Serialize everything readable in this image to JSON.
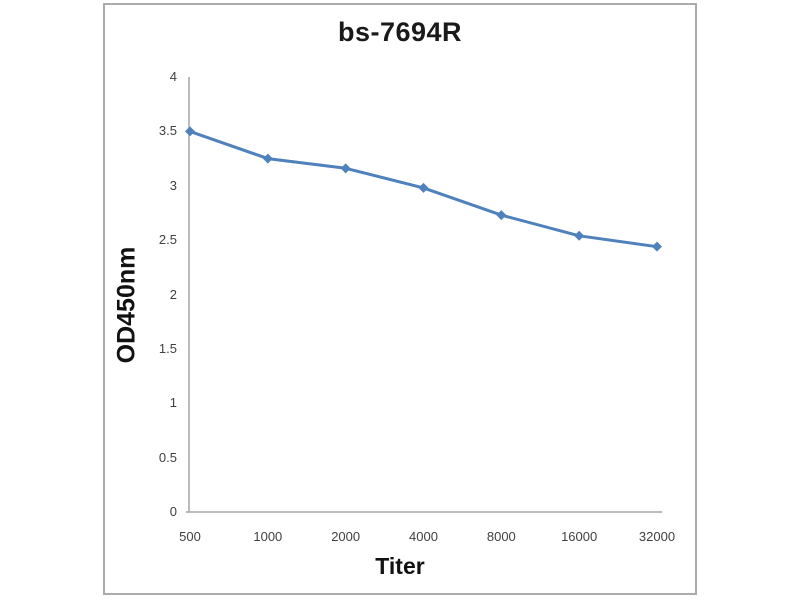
{
  "chart_data": {
    "type": "line",
    "title": "bs-7694R",
    "xlabel": "Titer",
    "ylabel": "OD450nm",
    "categories": [
      "500",
      "1000",
      "2000",
      "4000",
      "8000",
      "16000",
      "32000"
    ],
    "series": [
      {
        "name": "bs-7694R",
        "values": [
          3.5,
          3.25,
          3.16,
          2.98,
          2.73,
          2.54,
          2.44
        ]
      }
    ],
    "ylim": [
      0,
      4
    ],
    "yticks": [
      0,
      0.5,
      1,
      1.5,
      2,
      2.5,
      3,
      3.5,
      4
    ],
    "ytick_labels": [
      "0",
      "0.5",
      "1",
      "1.5",
      "2",
      "2.5",
      "3",
      "3.5",
      "4"
    ],
    "grid": false,
    "legend": false,
    "marker": "diamond",
    "line_color": "#4f81bd",
    "axis_color": "#a6a6a6",
    "tick_label_color": "#404040",
    "frame_border_color": "#ababab",
    "background_color": "#ffffff"
  }
}
